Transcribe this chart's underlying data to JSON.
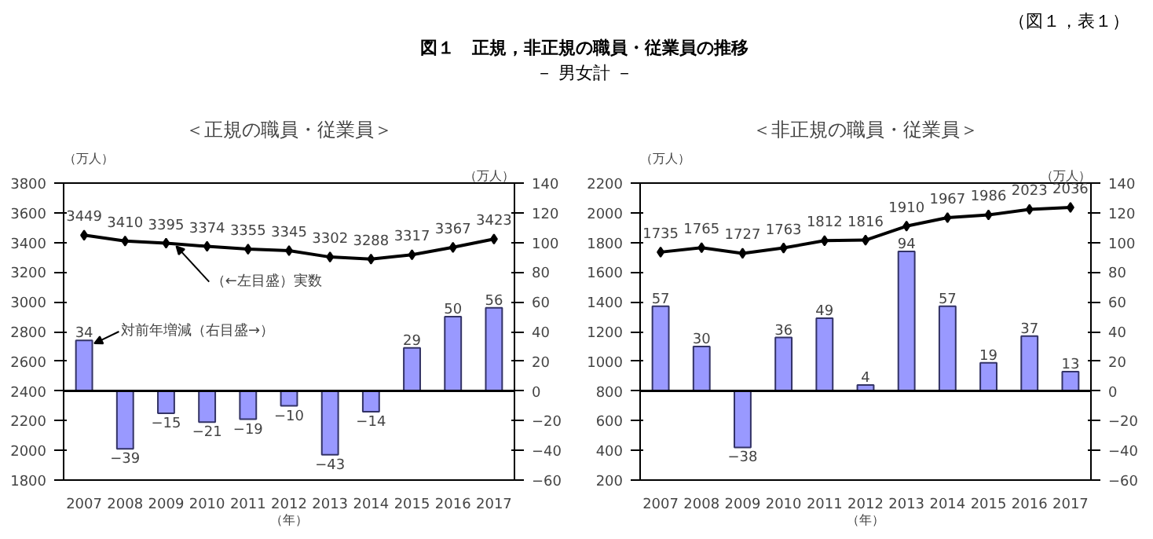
{
  "chart_data": [
    {
      "type": "bar",
      "title": "＜正規の職員・従業員＞",
      "ylabel": "（万人）",
      "y2label": "（万人）",
      "xlabel": "（年）",
      "categories": [
        "2007",
        "2008",
        "2009",
        "2010",
        "2011",
        "2012",
        "2013",
        "2014",
        "2015",
        "2016",
        "2017"
      ],
      "series": [
        {
          "type": "line",
          "color": "#000000",
          "values": [
            3449,
            3410,
            3395,
            3374,
            3355,
            3345,
            3302,
            3288,
            3317,
            3367,
            3423
          ]
        },
        {
          "axis": "y2",
          "color": "#9999ff",
          "values": [
            34,
            -39,
            -15,
            -21,
            -19,
            -10,
            -43,
            -14,
            29,
            50,
            56
          ]
        }
      ],
      "ylim": [
        1800,
        3800
      ],
      "yticks": [
        1800,
        2000,
        2200,
        2400,
        2600,
        2800,
        3000,
        3200,
        3400,
        3600,
        3800
      ],
      "y2lim": [
        -60,
        140
      ],
      "y2ticks": [
        -60,
        -40,
        -20,
        0,
        20,
        40,
        60,
        80,
        100,
        120,
        140
      ],
      "ref_lines": [
        {
          "axis": "y2",
          "value": 0,
          "color": "#000000"
        }
      ],
      "marker": "diamond",
      "data_labels": true,
      "grid": false,
      "annotations": [
        "（図１，表１）",
        "図１　正規，非正規の職員・従業員の推移",
        "－ 男女計 －",
        {
          "text": "（←左目盛）実数",
          "x": "2009",
          "y": 3395
        },
        {
          "text": "対前年増減（右目盛→）",
          "x": "2007",
          "y": 2740
        }
      ]
    },
    {
      "type": "bar",
      "title": "＜非正規の職員・従業員＞",
      "ylabel": "（万人）",
      "y2label": "（万人）",
      "xlabel": "（年）",
      "categories": [
        "2007",
        "2008",
        "2009",
        "2010",
        "2011",
        "2012",
        "2013",
        "2014",
        "2015",
        "2016",
        "2017"
      ],
      "series": [
        {
          "type": "line",
          "color": "#000000",
          "values": [
            1735,
            1765,
            1727,
            1763,
            1812,
            1816,
            1910,
            1967,
            1986,
            2023,
            2036
          ]
        },
        {
          "axis": "y2",
          "color": "#9999ff",
          "values": [
            57,
            30,
            -38,
            36,
            49,
            4,
            94,
            57,
            19,
            37,
            13
          ]
        }
      ],
      "ylim": [
        200,
        2200
      ],
      "yticks": [
        200,
        400,
        600,
        800,
        1000,
        1200,
        1400,
        1600,
        1800,
        2000,
        2200
      ],
      "y2lim": [
        -60,
        140
      ],
      "y2ticks": [
        -60,
        -40,
        -20,
        0,
        20,
        40,
        60,
        80,
        100,
        120,
        140
      ],
      "ref_lines": [
        {
          "axis": "y2",
          "value": 0,
          "color": "#000000"
        }
      ],
      "marker": "diamond",
      "data_labels": true,
      "grid": false
    }
  ]
}
